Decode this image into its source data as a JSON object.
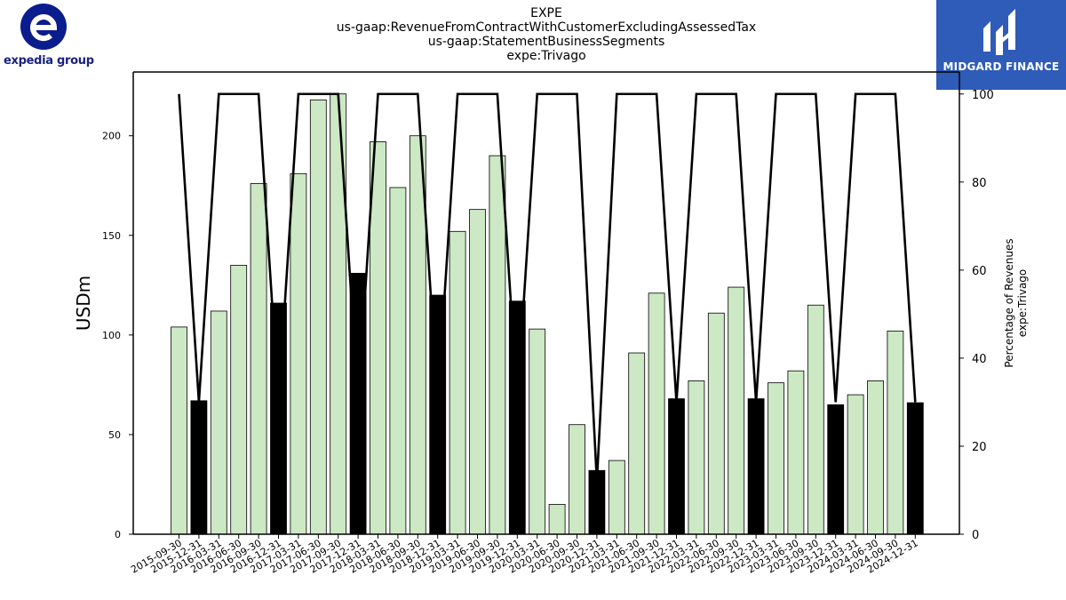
{
  "header": {
    "title_lines": [
      "EXPE",
      "us-gaap:RevenueFromContractWithCustomerExcludingAssessedTax",
      "us-gaap:StatementBusinessSegments",
      "expe:Trivago"
    ]
  },
  "logos": {
    "left_text": "expedia group",
    "left_icon": "expedia-e-icon",
    "left_color": "#0b1d8c",
    "right_text": "MIDGARD FINANCE",
    "right_icon": "midgard-m-icon",
    "right_bg": "#2e5cb8"
  },
  "chart_data": {
    "type": "bar",
    "categories": [
      "2015-09-30",
      "2015-12-31",
      "2016-03-31",
      "2016-06-30",
      "2016-09-30",
      "2016-12-31",
      "2017-03-31",
      "2017-06-30",
      "2017-09-30",
      "2017-12-31",
      "2018-03-31",
      "2018-06-30",
      "2018-09-30",
      "2018-12-31",
      "2019-03-31",
      "2019-06-30",
      "2019-09-30",
      "2019-12-31",
      "2020-03-31",
      "2020-06-30",
      "2020-09-30",
      "2020-12-31",
      "2021-03-31",
      "2021-06-30",
      "2021-09-30",
      "2021-12-31",
      "2022-03-31",
      "2022-06-30",
      "2022-09-30",
      "2022-12-31",
      "2023-03-31",
      "2023-06-30",
      "2023-09-30",
      "2023-12-31",
      "2024-03-31",
      "2024-06-30",
      "2024-09-30",
      "2024-12-31"
    ],
    "values": [
      104,
      67,
      112,
      135,
      176,
      116,
      181,
      218,
      221,
      131,
      197,
      174,
      200,
      120,
      152,
      163,
      190,
      117,
      103,
      15,
      55,
      32,
      37,
      91,
      121,
      68,
      77,
      111,
      124,
      68,
      76,
      82,
      115,
      65,
      70,
      77,
      102,
      66
    ],
    "bar_highlight": [
      false,
      true,
      false,
      false,
      false,
      true,
      false,
      false,
      false,
      true,
      false,
      false,
      false,
      true,
      false,
      false,
      false,
      true,
      false,
      false,
      false,
      true,
      false,
      false,
      false,
      true,
      false,
      false,
      false,
      true,
      false,
      false,
      false,
      true,
      false,
      false,
      false,
      true
    ],
    "percentage_line": [
      100,
      30,
      100,
      100,
      100,
      30,
      100,
      100,
      100,
      30,
      100,
      100,
      100,
      30,
      100,
      100,
      100,
      30,
      100,
      100,
      100,
      12,
      100,
      100,
      100,
      30,
      100,
      100,
      100,
      30,
      100,
      100,
      100,
      30,
      100,
      100,
      100,
      30
    ],
    "ylabel": "USDm",
    "ylabel_right_lines": [
      "Percentage of Revenues",
      "expe:Trivago"
    ],
    "ylim": [
      0,
      232
    ],
    "yticks": [
      0,
      50,
      100,
      150,
      200
    ],
    "ylim_right": [
      0,
      105
    ],
    "yticks_right": [
      0,
      20,
      40,
      60,
      80,
      100
    ],
    "colors": {
      "bar": "#cce8c4",
      "bar_highlight": "#000000",
      "line": "#000000"
    },
    "grid": false,
    "legend": "none"
  }
}
